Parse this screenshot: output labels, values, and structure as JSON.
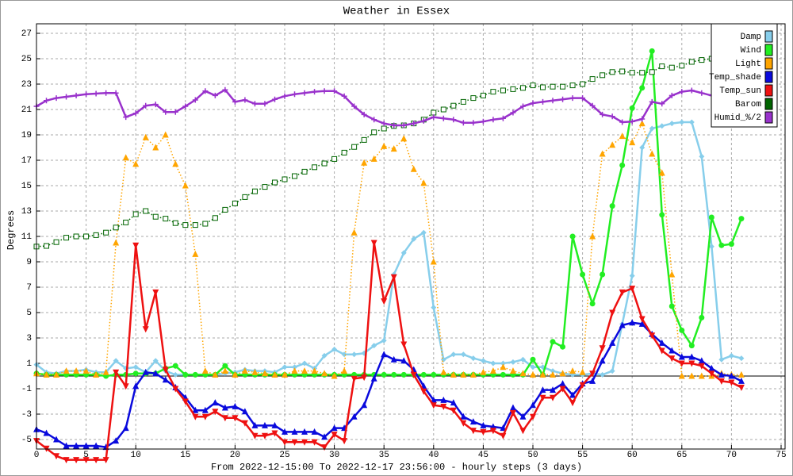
{
  "chart_data": {
    "type": "line",
    "title": "Weather in Essex",
    "x_label": "From 2022-12-15:00 To 2022-12-17 23:56:00 - hourly steps (3 days)",
    "y_label": "Degrees",
    "x": [
      0,
      1,
      2,
      3,
      4,
      5,
      6,
      7,
      8,
      9,
      10,
      11,
      12,
      13,
      14,
      15,
      16,
      17,
      18,
      19,
      20,
      21,
      22,
      23,
      24,
      25,
      26,
      27,
      28,
      29,
      30,
      31,
      32,
      33,
      34,
      35,
      36,
      37,
      38,
      39,
      40,
      41,
      42,
      43,
      44,
      45,
      46,
      47,
      48,
      49,
      50,
      51,
      52,
      53,
      54,
      55,
      56,
      57,
      58,
      59,
      60,
      61,
      62,
      63,
      64,
      65,
      66,
      67,
      68,
      69,
      70,
      71
    ],
    "xlim": [
      0,
      75.4
    ],
    "xticks": [
      0,
      5,
      10,
      15,
      20,
      25,
      30,
      35,
      40,
      45,
      50,
      55,
      60,
      65,
      70,
      75
    ],
    "ylim": [
      -5.75,
      27.75
    ],
    "yticks": [
      -5,
      -3,
      -1,
      1,
      3,
      5,
      7,
      9,
      11,
      13,
      15,
      17,
      19,
      21,
      23,
      25,
      27
    ],
    "grid": true,
    "hline": 0,
    "legend": "upper right",
    "series": [
      {
        "name": "Damp",
        "color": "#87ceeb",
        "dash": "solid",
        "marker": "diamond",
        "values": [
          0.9,
          0.3,
          0.2,
          0.4,
          0.4,
          0.5,
          0.3,
          0.3,
          1.2,
          0.6,
          0.7,
          0.3,
          1.2,
          0.4,
          0.1,
          0.1,
          0.1,
          0.1,
          0.1,
          0.2,
          0.3,
          0.5,
          0.4,
          0.4,
          0.3,
          0.7,
          0.7,
          1.0,
          0.6,
          1.6,
          2.1,
          1.7,
          1.7,
          1.8,
          2.4,
          2.8,
          8.0,
          9.7,
          10.8,
          11.3,
          5.4,
          1.3,
          1.7,
          1.7,
          1.4,
          1.2,
          1.0,
          1.0,
          1.1,
          1.3,
          0.7,
          0.7,
          0.4,
          0.2,
          0.1,
          0.1,
          0.2,
          0.1,
          0.4,
          4.1,
          7.9,
          18.0,
          19.5,
          19.7,
          19.9,
          20.0,
          20.0,
          17.3,
          10.2,
          1.3,
          1.6,
          1.4
        ]
      },
      {
        "name": "Wind",
        "color": "#22ee22",
        "dash": "solid",
        "marker": "circle",
        "values": [
          0.2,
          0.1,
          0.1,
          0.1,
          0.1,
          0.1,
          0.1,
          0.0,
          0.1,
          0.1,
          0.2,
          0.2,
          0.2,
          0.6,
          0.8,
          0.1,
          0.1,
          0.1,
          0.1,
          0.8,
          0.1,
          0.1,
          0.1,
          0.1,
          0.1,
          0.1,
          0.1,
          0.1,
          0.1,
          0.1,
          0.1,
          0.1,
          0.1,
          0.1,
          0.1,
          0.1,
          0.1,
          0.1,
          0.1,
          0.1,
          0.1,
          0.1,
          0.1,
          0.1,
          0.1,
          0.1,
          0.1,
          0.1,
          0.1,
          0.1,
          1.3,
          0.1,
          2.7,
          2.3,
          11.0,
          8.0,
          5.7,
          8.0,
          13.4,
          16.6,
          21.1,
          22.7,
          25.6,
          12.7,
          5.5,
          3.6,
          2.4,
          4.6,
          12.5,
          10.3,
          10.4,
          12.4
        ]
      },
      {
        "name": "Light",
        "color": "#ffa500",
        "dash": "dotted",
        "marker": "triangle-up",
        "values": [
          0.2,
          0.1,
          0.1,
          0.4,
          0.4,
          0.4,
          0.1,
          0.3,
          10.5,
          17.2,
          16.7,
          18.8,
          18.0,
          19.0,
          16.7,
          15.0,
          9.6,
          0.4,
          0.1,
          0.4,
          0.1,
          0.4,
          0.3,
          0.2,
          0.1,
          0.1,
          0.4,
          0.4,
          0.4,
          0.2,
          0.0,
          0.4,
          11.3,
          16.8,
          17.1,
          18.1,
          17.9,
          18.7,
          16.3,
          15.2,
          9.0,
          0.3,
          0.1,
          0.1,
          0.1,
          0.3,
          0.4,
          0.7,
          0.4,
          0.2,
          0.1,
          0.1,
          0.1,
          0.2,
          0.4,
          0.3,
          11.0,
          17.5,
          18.2,
          18.9,
          18.4,
          19.9,
          17.5,
          16.0,
          8.0,
          0.0,
          0.0,
          0.0,
          0.0,
          0.2,
          0.1,
          0.1
        ]
      },
      {
        "name": "Temp_shade",
        "color": "#0a0add",
        "dash": "solid",
        "marker": "triangle-up",
        "values": [
          -4.2,
          -4.5,
          -5.0,
          -5.5,
          -5.5,
          -5.5,
          -5.5,
          -5.6,
          -5.1,
          -4.1,
          -0.8,
          0.3,
          0.2,
          -0.3,
          -0.9,
          -1.7,
          -2.7,
          -2.7,
          -2.1,
          -2.5,
          -2.4,
          -2.8,
          -3.9,
          -3.9,
          -3.9,
          -4.4,
          -4.4,
          -4.4,
          -4.4,
          -4.8,
          -4.1,
          -4.1,
          -3.2,
          -2.3,
          -0.2,
          1.7,
          1.3,
          1.2,
          0.5,
          -0.8,
          -1.9,
          -1.9,
          -2.1,
          -3.2,
          -3.6,
          -3.9,
          -4.0,
          -4.1,
          -2.5,
          -3.2,
          -2.3,
          -1.1,
          -1.1,
          -0.6,
          -1.5,
          -0.6,
          -0.4,
          1.2,
          2.6,
          4.0,
          4.2,
          4.1,
          3.3,
          2.6,
          2.0,
          1.5,
          1.5,
          1.2,
          0.6,
          0.1,
          0.0,
          -0.4
        ]
      },
      {
        "name": "Temp_sun",
        "color": "#ee1111",
        "dash": "solid",
        "marker": "triangle-down",
        "values": [
          -5.1,
          -5.7,
          -6.3,
          -6.6,
          -6.6,
          -6.6,
          -6.6,
          -6.6,
          0.3,
          -0.8,
          10.3,
          3.7,
          6.6,
          0.5,
          -1.0,
          -2.0,
          -3.2,
          -3.2,
          -2.8,
          -3.3,
          -3.3,
          -3.7,
          -4.7,
          -4.7,
          -4.5,
          -5.2,
          -5.2,
          -5.2,
          -5.2,
          -5.6,
          -4.6,
          -5.1,
          -0.2,
          -0.1,
          10.5,
          5.9,
          7.8,
          2.5,
          0.1,
          -1.2,
          -2.3,
          -2.4,
          -2.7,
          -3.7,
          -4.3,
          -4.4,
          -4.3,
          -4.7,
          -2.9,
          -4.3,
          -3.2,
          -1.7,
          -1.7,
          -1.0,
          -2.1,
          -0.7,
          0.2,
          2.2,
          5.0,
          6.6,
          6.9,
          4.5,
          3.2,
          2.0,
          1.4,
          1.0,
          1.0,
          0.8,
          0.2,
          -0.4,
          -0.5,
          -0.9
        ]
      },
      {
        "name": "Barom",
        "color": "#006400",
        "dash": "dotted",
        "marker": "square-open",
        "values": [
          10.2,
          10.25,
          10.55,
          10.9,
          11.0,
          11.0,
          11.1,
          11.3,
          11.7,
          12.1,
          12.75,
          13.0,
          12.55,
          12.4,
          12.05,
          11.9,
          11.9,
          12.0,
          12.45,
          13.1,
          13.6,
          14.1,
          14.55,
          14.9,
          15.25,
          15.5,
          15.75,
          16.1,
          16.45,
          16.75,
          17.1,
          17.6,
          18.05,
          18.6,
          19.2,
          19.5,
          19.7,
          19.75,
          19.9,
          20.2,
          20.75,
          21.0,
          21.3,
          21.6,
          21.9,
          22.1,
          22.4,
          22.5,
          22.6,
          22.7,
          22.9,
          22.75,
          22.8,
          22.8,
          22.9,
          23.0,
          23.4,
          23.7,
          23.95,
          24.0,
          23.9,
          23.9,
          23.95,
          24.4,
          24.3,
          24.45,
          24.75,
          24.9,
          25.0,
          25.1,
          25.2,
          25.3
        ]
      },
      {
        "name": "Humid_%/2",
        "color": "#9932cc",
        "dash": "solid",
        "marker": "plus",
        "values": [
          21.25,
          21.7,
          21.9,
          22.0,
          22.1,
          22.2,
          22.25,
          22.3,
          22.3,
          20.4,
          20.7,
          21.3,
          21.4,
          20.8,
          20.8,
          21.25,
          21.75,
          22.45,
          22.1,
          22.55,
          21.6,
          21.75,
          21.45,
          21.45,
          21.8,
          22.05,
          22.2,
          22.3,
          22.4,
          22.45,
          22.45,
          22.05,
          21.25,
          20.6,
          20.2,
          19.9,
          19.75,
          19.75,
          19.9,
          20.1,
          20.4,
          20.3,
          20.2,
          19.95,
          19.95,
          20.05,
          20.2,
          20.3,
          20.75,
          21.25,
          21.5,
          21.6,
          21.7,
          21.8,
          21.9,
          21.9,
          21.3,
          20.6,
          20.45,
          20.0,
          20.05,
          20.25,
          21.6,
          21.45,
          22.1,
          22.4,
          22.5,
          22.3,
          22.1,
          22.0,
          22.0,
          21.9
        ]
      }
    ]
  }
}
